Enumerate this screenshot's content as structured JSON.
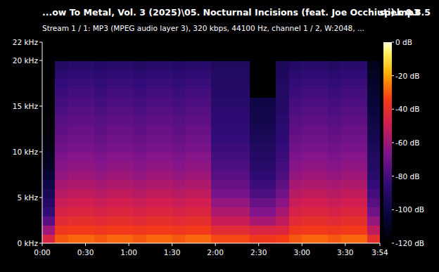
{
  "chart_data": {
    "type": "heatmap",
    "title": "...ow To Metal, Vol. 3 (2025)\\05. Nocturnal Incisions (feat. Joe Occhiuti).mp3",
    "title_right": "spek 0.8.5",
    "subtitle": "Stream 1 / 1: MP3 (MPEG audio layer 3), 320 kbps, 44100 Hz, channel 1 / 2, W:2048, ...",
    "xlim": [
      0,
      234
    ],
    "xticks": [
      {
        "value": 0,
        "label": "0:00"
      },
      {
        "value": 30,
        "label": "0:30"
      },
      {
        "value": 60,
        "label": "1:00"
      },
      {
        "value": 90,
        "label": "1:30"
      },
      {
        "value": 120,
        "label": "2:00"
      },
      {
        "value": 150,
        "label": "2:30"
      },
      {
        "value": 180,
        "label": "3:00"
      },
      {
        "value": 210,
        "label": "3:30"
      },
      {
        "value": 234,
        "label": "3:54"
      }
    ],
    "ylim": [
      0,
      22
    ],
    "yticks": [
      {
        "value": 0,
        "label": "0 kHz"
      },
      {
        "value": 5,
        "label": "5 kHz"
      },
      {
        "value": 10,
        "label": "10 kHz"
      },
      {
        "value": 15,
        "label": "15 kHz"
      },
      {
        "value": 20,
        "label": "20 kHz"
      },
      {
        "value": 22,
        "label": "22 kHz"
      }
    ],
    "time_bins": [
      0,
      9,
      18,
      27,
      36,
      45,
      54,
      63,
      72,
      81,
      90,
      99,
      108,
      117,
      126,
      135,
      144,
      153,
      162,
      171,
      180,
      189,
      198,
      207,
      216,
      225,
      234
    ],
    "freq_bins": [
      0,
      1,
      2,
      3,
      4,
      5,
      6,
      7,
      8,
      9,
      10,
      11,
      12,
      13,
      14,
      15,
      16,
      17,
      18,
      19,
      20,
      21,
      22
    ],
    "cells": [
      [
        -45,
        -60,
        -75,
        -85,
        -90,
        -95,
        -100,
        -105,
        -110,
        -112,
        -115,
        -116,
        -118,
        -118,
        -119,
        -119,
        -120,
        -120,
        -120,
        -120,
        -120,
        -120
      ],
      [
        -30,
        -36,
        -42,
        -46,
        -50,
        -54,
        -58,
        -62,
        -65,
        -67,
        -70,
        -72,
        -74,
        -76,
        -78,
        -80,
        -82,
        -84,
        -87,
        -90,
        -120,
        -120
      ],
      [
        -28,
        -35,
        -40,
        -44,
        -48,
        -52,
        -56,
        -60,
        -63,
        -65,
        -68,
        -70,
        -72,
        -74,
        -76,
        -78,
        -80,
        -82,
        -85,
        -88,
        -120,
        -120
      ],
      [
        -28,
        -35,
        -40,
        -44,
        -48,
        -52,
        -56,
        -60,
        -63,
        -65,
        -68,
        -70,
        -72,
        -74,
        -76,
        -78,
        -80,
        -82,
        -85,
        -88,
        -120,
        -120
      ],
      [
        -30,
        -36,
        -42,
        -46,
        -50,
        -54,
        -58,
        -62,
        -65,
        -67,
        -70,
        -72,
        -74,
        -76,
        -78,
        -80,
        -82,
        -84,
        -87,
        -90,
        -120,
        -120
      ],
      [
        -28,
        -35,
        -40,
        -44,
        -48,
        -52,
        -56,
        -60,
        -63,
        -65,
        -68,
        -70,
        -72,
        -74,
        -76,
        -78,
        -80,
        -82,
        -85,
        -88,
        -120,
        -120
      ],
      [
        -28,
        -35,
        -40,
        -44,
        -48,
        -52,
        -56,
        -60,
        -63,
        -65,
        -68,
        -70,
        -72,
        -74,
        -76,
        -78,
        -80,
        -82,
        -85,
        -88,
        -120,
        -120
      ],
      [
        -30,
        -36,
        -42,
        -46,
        -50,
        -54,
        -58,
        -62,
        -65,
        -67,
        -70,
        -72,
        -74,
        -76,
        -78,
        -80,
        -82,
        -84,
        -87,
        -90,
        -120,
        -120
      ],
      [
        -28,
        -35,
        -40,
        -44,
        -48,
        -52,
        -56,
        -60,
        -63,
        -65,
        -68,
        -70,
        -72,
        -74,
        -76,
        -78,
        -80,
        -82,
        -85,
        -88,
        -120,
        -120
      ],
      [
        -28,
        -35,
        -40,
        -44,
        -48,
        -52,
        -56,
        -60,
        -63,
        -65,
        -68,
        -70,
        -72,
        -74,
        -76,
        -78,
        -80,
        -82,
        -85,
        -88,
        -120,
        -120
      ],
      [
        -30,
        -36,
        -42,
        -46,
        -50,
        -54,
        -58,
        -62,
        -65,
        -67,
        -70,
        -72,
        -74,
        -76,
        -78,
        -80,
        -82,
        -84,
        -87,
        -90,
        -120,
        -120
      ],
      [
        -28,
        -35,
        -40,
        -44,
        -48,
        -52,
        -56,
        -60,
        -63,
        -65,
        -68,
        -70,
        -72,
        -74,
        -76,
        -78,
        -80,
        -82,
        -85,
        -88,
        -120,
        -120
      ],
      [
        -28,
        -35,
        -40,
        -44,
        -48,
        -52,
        -56,
        -60,
        -63,
        -65,
        -68,
        -70,
        -72,
        -74,
        -76,
        -78,
        -80,
        -82,
        -85,
        -88,
        -120,
        -120
      ],
      [
        -32,
        -42,
        -50,
        -56,
        -62,
        -68,
        -72,
        -75,
        -78,
        -80,
        -82,
        -84,
        -85,
        -86,
        -87,
        -88,
        -89,
        -90,
        -91,
        -92,
        -120,
        -120
      ],
      [
        -32,
        -42,
        -50,
        -56,
        -62,
        -68,
        -72,
        -75,
        -78,
        -80,
        -82,
        -84,
        -85,
        -86,
        -87,
        -88,
        -89,
        -90,
        -91,
        -92,
        -120,
        -120
      ],
      [
        -32,
        -42,
        -50,
        -56,
        -62,
        -68,
        -72,
        -75,
        -78,
        -80,
        -82,
        -84,
        -85,
        -86,
        -87,
        -88,
        -89,
        -90,
        -91,
        -92,
        -120,
        -120
      ],
      [
        -36,
        -45,
        -58,
        -66,
        -72,
        -78,
        -82,
        -86,
        -88,
        -90,
        -92,
        -94,
        -96,
        -98,
        -99,
        -100,
        -120,
        -120,
        -120,
        -120,
        -120,
        -120
      ],
      [
        -36,
        -45,
        -58,
        -66,
        -72,
        -78,
        -82,
        -86,
        -88,
        -90,
        -92,
        -94,
        -96,
        -98,
        -99,
        -100,
        -120,
        -120,
        -120,
        -120,
        -120,
        -120
      ],
      [
        -34,
        -44,
        -52,
        -58,
        -64,
        -70,
        -74,
        -78,
        -80,
        -82,
        -84,
        -86,
        -87,
        -88,
        -89,
        -90,
        -91,
        -92,
        -93,
        -94,
        -120,
        -120
      ],
      [
        -30,
        -36,
        -42,
        -46,
        -50,
        -54,
        -58,
        -62,
        -65,
        -67,
        -70,
        -72,
        -74,
        -76,
        -78,
        -80,
        -82,
        -84,
        -87,
        -90,
        -120,
        -120
      ],
      [
        -28,
        -35,
        -40,
        -44,
        -48,
        -52,
        -56,
        -60,
        -63,
        -65,
        -68,
        -70,
        -72,
        -74,
        -76,
        -78,
        -80,
        -82,
        -85,
        -88,
        -120,
        -120
      ],
      [
        -28,
        -35,
        -40,
        -44,
        -48,
        -52,
        -56,
        -60,
        -63,
        -65,
        -68,
        -70,
        -72,
        -74,
        -76,
        -78,
        -80,
        -82,
        -85,
        -88,
        -120,
        -120
      ],
      [
        -30,
        -36,
        -42,
        -46,
        -50,
        -54,
        -58,
        -62,
        -65,
        -67,
        -70,
        -72,
        -74,
        -76,
        -78,
        -80,
        -82,
        -84,
        -87,
        -90,
        -120,
        -120
      ],
      [
        -28,
        -35,
        -40,
        -44,
        -48,
        -52,
        -56,
        -60,
        -63,
        -65,
        -68,
        -70,
        -72,
        -74,
        -76,
        -78,
        -80,
        -82,
        -85,
        -88,
        -120,
        -120
      ],
      [
        -28,
        -35,
        -40,
        -44,
        -48,
        -52,
        -56,
        -60,
        -63,
        -65,
        -68,
        -70,
        -72,
        -74,
        -76,
        -78,
        -80,
        -82,
        -85,
        -88,
        -120,
        -120
      ],
      [
        -40,
        -52,
        -62,
        -70,
        -76,
        -80,
        -84,
        -88,
        -90,
        -92,
        -94,
        -96,
        -98,
        -100,
        -102,
        -104,
        -106,
        -108,
        -110,
        -112,
        -120,
        -120
      ]
    ],
    "colorbar_range": [
      -120,
      0
    ],
    "colorbar_ticks": [
      {
        "value": 0,
        "label": "0 dB"
      },
      {
        "value": -20,
        "label": "-20 dB"
      },
      {
        "value": -40,
        "label": "-40 dB"
      },
      {
        "value": -60,
        "label": "-60 dB"
      },
      {
        "value": -80,
        "label": "-80 dB"
      },
      {
        "value": -100,
        "label": "-100 dB"
      },
      {
        "value": -120,
        "label": "-120 dB"
      }
    ]
  }
}
